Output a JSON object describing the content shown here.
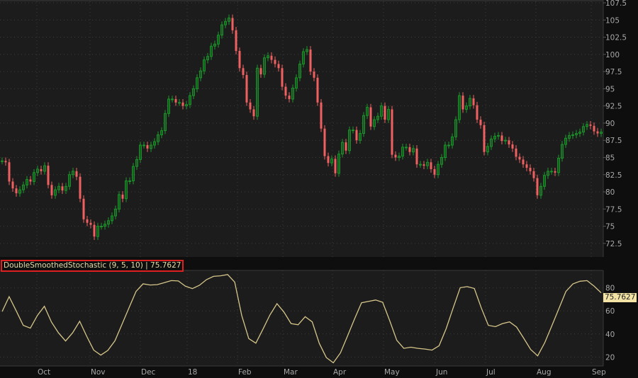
{
  "chart_data": [
    {
      "type": "candlestick",
      "price_axis": {
        "ticks": [
          "107.5",
          "105",
          "102.5",
          "100",
          "97.5",
          "95",
          "92.5",
          "90",
          "87.5",
          "85",
          "82.5",
          "80",
          "77.5",
          "75",
          "72.5"
        ],
        "ylim": [
          72.5,
          107.5
        ]
      },
      "time_axis": {
        "ticks": [
          "Oct",
          "Nov",
          "Dec",
          "18",
          "Feb",
          "Mar",
          "Apr",
          "May",
          "Jun",
          "Jul",
          "Aug",
          "Sep"
        ]
      },
      "grid": true,
      "colors": {
        "up": "#1a9a2a",
        "down": "#f06060",
        "background": "#1c1c1c"
      },
      "closes": [
        84.5,
        84.3,
        81.5,
        80.5,
        79.8,
        80.3,
        81,
        81.8,
        81.5,
        82.8,
        83.3,
        83,
        83.8,
        81,
        79.5,
        80.3,
        80.8,
        80.2,
        80.8,
        82.5,
        83,
        82.2,
        79,
        76,
        75.5,
        75.2,
        73.5,
        75,
        75,
        75.3,
        75.8,
        76.5,
        77.5,
        79.6,
        79,
        81.6,
        81.6,
        83.7,
        84.7,
        86.8,
        86.8,
        86.3,
        86.8,
        87.3,
        88.3,
        88.9,
        91.4,
        93.5,
        93.5,
        93,
        93,
        92.5,
        92.7,
        94,
        95,
        96.6,
        97.6,
        99.2,
        99.7,
        101.2,
        101.5,
        102.8,
        104.3,
        104.8,
        105.3,
        103.5,
        100.5,
        98,
        97,
        93,
        92,
        91,
        98,
        97.1,
        99.5,
        99.8,
        99.2,
        98.6,
        98,
        95.3,
        94,
        93.5,
        95.1,
        96.6,
        98.6,
        100.4,
        100.7,
        97.5,
        96.6,
        93,
        89.2,
        85.2,
        84.2,
        84.8,
        82.7,
        85.5,
        87.2,
        86,
        89,
        89,
        87.5,
        88.5,
        91.1,
        92.3,
        89.5,
        90.5,
        91,
        92.5,
        90.5,
        92,
        85.4,
        85,
        85.2,
        86.5,
        86.5,
        85.8,
        86.3,
        84,
        84,
        83.8,
        84.3,
        83.3,
        82.5,
        84,
        85,
        86.8,
        86.8,
        88,
        90.5,
        94,
        92,
        92.5,
        93.6,
        92.6,
        90.5,
        89.7,
        85.8,
        86.6,
        87.7,
        88.1,
        88.2,
        87.4,
        87.5,
        86.9,
        86.3,
        85.1,
        84.7,
        84,
        83.5,
        83,
        82,
        79.5,
        80.8,
        82.4,
        83,
        83,
        82.8,
        84.9,
        86.9,
        87.8,
        88.2,
        88.3,
        88.5,
        88.7,
        89.5,
        89.8,
        89.6,
        88.8,
        88.5,
        88.7
      ]
    },
    {
      "type": "line",
      "title": "DoubleSmoothedStochastic (9, 5, 10)",
      "last_value": "75.7627",
      "y_axis": {
        "ticks": [
          "80",
          "60",
          "40",
          "20"
        ]
      },
      "color": "#d6c68a",
      "values": [
        59.5,
        72.4,
        60,
        47.5,
        45,
        56,
        64,
        50.3,
        41,
        33.9,
        41,
        51,
        38,
        26,
        21.6,
        25.7,
        34,
        48.2,
        62.6,
        76.9,
        83.5,
        82.5,
        82.8,
        84.5,
        86.3,
        86,
        81.5,
        79.4,
        82.3,
        87.2,
        90,
        90.5,
        91.6,
        85,
        56,
        36,
        32,
        44,
        56.5,
        66.3,
        59,
        49,
        48,
        55,
        50.5,
        31.8,
        19.5,
        15,
        23.5,
        38,
        53,
        67.1,
        68.3,
        69.5,
        67.5,
        51.5,
        34.5,
        27.5,
        28.5,
        27.5,
        26.9,
        26,
        29.8,
        44.5,
        62.5,
        80.2,
        81.1,
        79.5,
        62.5,
        47.5,
        46.3,
        49,
        50.5,
        46,
        36.5,
        26.5,
        21,
        32.5,
        47,
        62,
        76.9,
        83.5,
        85.8,
        86.3,
        81.5,
        75.76
      ]
    }
  ],
  "study": {
    "label": "DoubleSmoothedStochastic (9, 5, 10)",
    "separator": "|",
    "value": "75.7627"
  }
}
